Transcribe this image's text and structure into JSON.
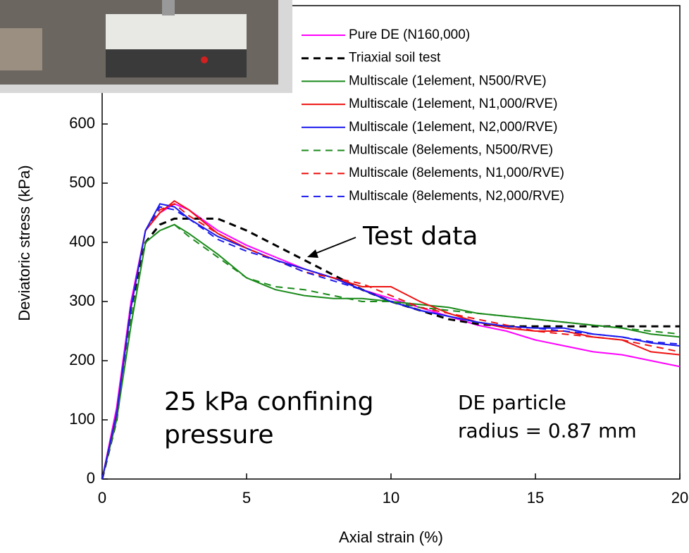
{
  "chart_data": {
    "type": "line",
    "x_label": "Axial strain (%)",
    "y_label": "Deviatoric stress (kPa)",
    "xlim": [
      0,
      20
    ],
    "ylim": [
      0,
      800
    ],
    "xticks": [
      0,
      5,
      10,
      15,
      20
    ],
    "yticks": [
      0,
      100,
      200,
      300,
      400,
      500,
      600
    ],
    "x": [
      0,
      0.5,
      1,
      1.5,
      2,
      2.5,
      3,
      4,
      5,
      6,
      7,
      8,
      9,
      10,
      11,
      12,
      13,
      14,
      15,
      16,
      17,
      18,
      19,
      20
    ],
    "series": [
      {
        "name": "Pure DE (N160,000)",
        "color": "#ff00ff",
        "dashed": false,
        "values": [
          0,
          120,
          300,
          420,
          450,
          465,
          455,
          420,
          395,
          375,
          355,
          340,
          320,
          305,
          290,
          275,
          260,
          250,
          235,
          225,
          215,
          210,
          200,
          190
        ]
      },
      {
        "name": "Triaxial soil test",
        "color": "#000000",
        "dashed": true,
        "values": [
          0,
          100,
          290,
          400,
          430,
          440,
          440,
          440,
          420,
          395,
          370,
          345,
          320,
          300,
          285,
          270,
          262,
          258,
          258,
          258,
          258,
          258,
          258,
          258
        ]
      },
      {
        "name": "Multiscale (1element,  N500/RVE)",
        "color": "#1a8a1a",
        "dashed": false,
        "values": [
          0,
          100,
          260,
          400,
          420,
          430,
          415,
          380,
          340,
          320,
          310,
          305,
          305,
          300,
          295,
          290,
          280,
          275,
          270,
          265,
          260,
          255,
          245,
          240
        ]
      },
      {
        "name": "Multiscale (1element,  N1,000/RVE)",
        "color": "#ee1111",
        "dashed": false,
        "values": [
          0,
          110,
          290,
          420,
          450,
          470,
          455,
          415,
          390,
          370,
          355,
          340,
          325,
          325,
          300,
          280,
          265,
          255,
          250,
          250,
          240,
          235,
          215,
          210
        ]
      },
      {
        "name": "Multiscale (1element,  N2,000/RVE)",
        "color": "#1a1aee",
        "dashed": false,
        "values": [
          0,
          110,
          290,
          420,
          465,
          460,
          440,
          410,
          390,
          370,
          355,
          340,
          320,
          300,
          285,
          275,
          265,
          258,
          255,
          255,
          245,
          240,
          230,
          225
        ]
      },
      {
        "name": "Multiscale (8elements, N500/RVE)",
        "color": "#1a8a1a",
        "dashed": true,
        "values": [
          0,
          100,
          270,
          400,
          420,
          430,
          410,
          375,
          340,
          325,
          320,
          310,
          300,
          300,
          290,
          285,
          280,
          275,
          270,
          265,
          260,
          255,
          250,
          245
        ]
      },
      {
        "name": "Multiscale (8elements, N1,000/RVE)",
        "color": "#ee1111",
        "dashed": true,
        "values": [
          0,
          110,
          290,
          420,
          455,
          465,
          445,
          415,
          390,
          370,
          350,
          340,
          330,
          310,
          290,
          280,
          270,
          260,
          250,
          245,
          240,
          235,
          225,
          215
        ]
      },
      {
        "name": "Multiscale (8elements, N2,000/RVE)",
        "color": "#1a1aee",
        "dashed": true,
        "values": [
          0,
          110,
          290,
          420,
          460,
          455,
          440,
          405,
          385,
          370,
          350,
          335,
          320,
          300,
          285,
          275,
          265,
          258,
          255,
          250,
          245,
          240,
          232,
          228
        ]
      }
    ],
    "annotations": [
      "Test data",
      "25 kPa confining",
      "pressure",
      "DE particle",
      "radius = 0.87 mm"
    ]
  }
}
